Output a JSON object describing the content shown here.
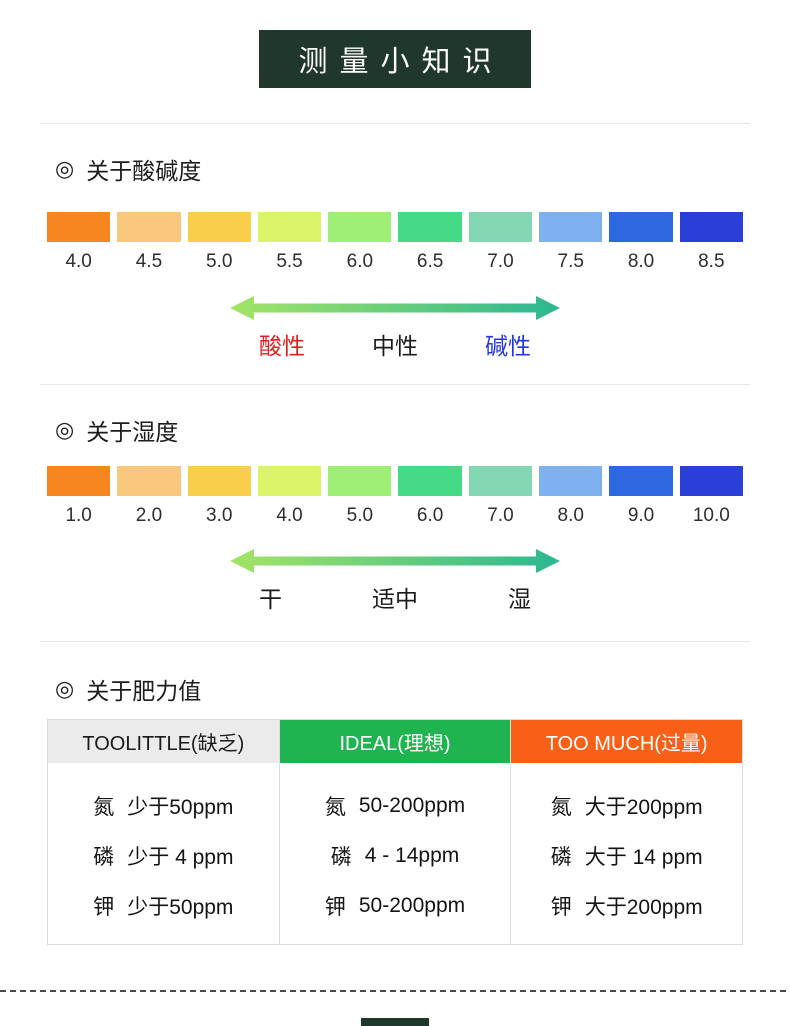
{
  "page": {
    "background": "#FFFFFF",
    "accent_dark": "#20372B",
    "divider_color": "#E7E7E7"
  },
  "header": {
    "title": "测量小知识"
  },
  "ph_section": {
    "bullet": "◎",
    "title": "关于酸碱度",
    "scale": [
      {
        "value": "4.0",
        "color": "#F6861F"
      },
      {
        "value": "4.5",
        "color": "#F9C87E"
      },
      {
        "value": "5.0",
        "color": "#F8CE4A"
      },
      {
        "value": "5.5",
        "color": "#D9F46A"
      },
      {
        "value": "6.0",
        "color": "#9FEE75"
      },
      {
        "value": "6.5",
        "color": "#45DA85"
      },
      {
        "value": "7.0",
        "color": "#83D6B2"
      },
      {
        "value": "7.5",
        "color": "#7FB0F0"
      },
      {
        "value": "8.0",
        "color": "#2E68E0"
      },
      {
        "value": "8.5",
        "color": "#2B3FD8"
      }
    ],
    "arrow": {
      "gradient_start": "#A4E465",
      "gradient_end": "#2BB792"
    },
    "zones": [
      {
        "text": "酸性",
        "color": "#E02020"
      },
      {
        "text": "中性",
        "color": "#1B1B1B"
      },
      {
        "text": "碱性",
        "color": "#2338DA"
      }
    ]
  },
  "humidity_section": {
    "bullet": "◎",
    "title": "关于湿度",
    "scale": [
      {
        "value": "1.0",
        "color": "#F6861F"
      },
      {
        "value": "2.0",
        "color": "#F9C87E"
      },
      {
        "value": "3.0",
        "color": "#F8CE4A"
      },
      {
        "value": "4.0",
        "color": "#D9F46A"
      },
      {
        "value": "5.0",
        "color": "#9FEE75"
      },
      {
        "value": "6.0",
        "color": "#45DA85"
      },
      {
        "value": "7.0",
        "color": "#83D6B2"
      },
      {
        "value": "8.0",
        "color": "#7FB0F0"
      },
      {
        "value": "9.0",
        "color": "#2E68E0"
      },
      {
        "value": "10.0",
        "color": "#2B3FD8"
      }
    ],
    "arrow": {
      "gradient_start": "#A4E465",
      "gradient_end": "#2BB792"
    },
    "zones": [
      {
        "text": "干",
        "color": "#1B1B1B"
      },
      {
        "text": "适中",
        "color": "#1B1B1B"
      },
      {
        "text": "湿",
        "color": "#1B1B1B"
      }
    ]
  },
  "fertility_section": {
    "bullet": "◎",
    "title": "关于肥力值",
    "table": {
      "columns": [
        {
          "header": "TOOLITTLE(缺乏)",
          "header_bg": "#EBEBEB",
          "header_text_color": "#1A1A1A",
          "rows": [
            {
              "element": "氮",
              "value": "少于50ppm"
            },
            {
              "element": "磷",
              "value": "少于 4 ppm"
            },
            {
              "element": "钾",
              "value": "少于50ppm"
            }
          ]
        },
        {
          "header": "IDEAL(理想)",
          "header_bg": "#1FB450",
          "header_text_color": "#FFFFFF",
          "rows": [
            {
              "element": "氮",
              "value": "50-200ppm"
            },
            {
              "element": "磷",
              "value": "4 - 14ppm"
            },
            {
              "element": "钾",
              "value": "50-200ppm"
            }
          ]
        },
        {
          "header": "TOO MUCH(过量)",
          "header_bg": "#F85F17",
          "header_text_color": "#FFFFFF",
          "rows": [
            {
              "element": "氮",
              "value": "大于200ppm"
            },
            {
              "element": "磷",
              "value": "大于 14 ppm"
            },
            {
              "element": "钾",
              "value": "大于200ppm"
            }
          ]
        }
      ]
    }
  }
}
